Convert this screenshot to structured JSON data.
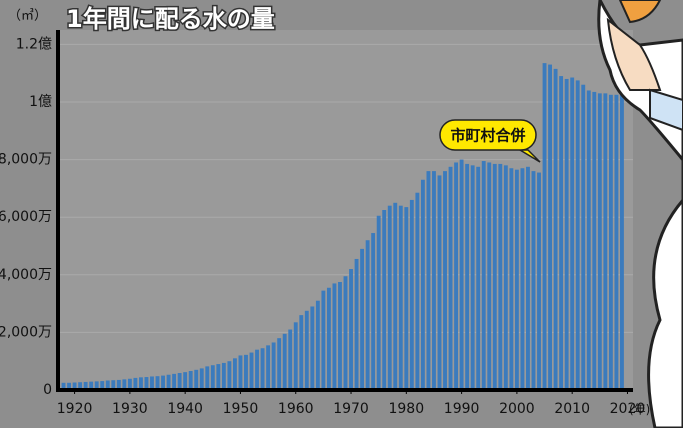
{
  "chart_data": {
    "type": "bar",
    "title": "1年間に配る水の量",
    "y_unit": "（㎥）",
    "x_unit": "(年)",
    "annotation": "市町村合併",
    "color": "#3b7bbd",
    "grid": true,
    "x": [
      1918,
      1919,
      1920,
      1921,
      1922,
      1923,
      1924,
      1925,
      1926,
      1927,
      1928,
      1929,
      1930,
      1931,
      1932,
      1933,
      1934,
      1935,
      1936,
      1937,
      1938,
      1939,
      1940,
      1941,
      1942,
      1943,
      1944,
      1945,
      1946,
      1947,
      1948,
      1949,
      1950,
      1951,
      1952,
      1953,
      1954,
      1955,
      1956,
      1957,
      1958,
      1959,
      1960,
      1961,
      1962,
      1963,
      1964,
      1965,
      1966,
      1967,
      1968,
      1969,
      1970,
      1971,
      1972,
      1973,
      1974,
      1975,
      1976,
      1977,
      1978,
      1979,
      1980,
      1981,
      1982,
      1983,
      1984,
      1985,
      1986,
      1987,
      1988,
      1989,
      1990,
      1991,
      1992,
      1993,
      1994,
      1995,
      1996,
      1997,
      1998,
      1999,
      2000,
      2001,
      2002,
      2003,
      2004,
      2005,
      2006,
      2007,
      2008,
      2009,
      2010,
      2011,
      2012,
      2013,
      2014,
      2015,
      2016,
      2017,
      2018,
      2019
    ],
    "values": [
      2500000,
      2500000,
      2600000,
      2700000,
      2800000,
      2900000,
      3000000,
      3100000,
      3300000,
      3400000,
      3500000,
      3700000,
      3900000,
      4200000,
      4400000,
      4500000,
      4700000,
      4800000,
      5000000,
      5300000,
      5600000,
      5900000,
      6200000,
      6600000,
      7000000,
      7500000,
      8200000,
      8600000,
      9000000,
      9400000,
      10000000,
      11000000,
      12000000,
      12200000,
      13000000,
      14000000,
      14500000,
      15500000,
      16500000,
      18000000,
      19500000,
      21000000,
      23500000,
      26000000,
      27500000,
      29000000,
      31000000,
      34500000,
      35500000,
      37000000,
      37500000,
      39500000,
      42000000,
      45500000,
      49000000,
      52000000,
      54500000,
      60500000,
      62500000,
      64000000,
      65000000,
      64000000,
      63500000,
      66000000,
      68500000,
      73000000,
      76000000,
      76000000,
      74500000,
      76000000,
      77500000,
      79000000,
      80000000,
      78500000,
      78000000,
      77500000,
      79500000,
      79000000,
      78500000,
      78500000,
      78000000,
      77000000,
      76500000,
      77000000,
      77500000,
      76000000,
      75500000,
      113500000,
      113000000,
      111500000,
      109000000,
      108000000,
      108500000,
      107500000,
      106000000,
      104000000,
      103500000,
      103000000,
      103000000,
      102500000,
      102500000,
      102500000
    ],
    "xlim": [
      1917,
      2021
    ],
    "xticks": [
      1920,
      1930,
      1940,
      1950,
      1960,
      1970,
      1980,
      1990,
      2000,
      2010,
      2020
    ],
    "ylim": [
      0,
      125000000
    ],
    "yticks": [
      {
        "value": 0,
        "label": "0"
      },
      {
        "value": 20000000,
        "label": "2,000万"
      },
      {
        "value": 40000000,
        "label": "4,000万"
      },
      {
        "value": 60000000,
        "label": "6,000万"
      },
      {
        "value": 80000000,
        "label": "8,000万"
      },
      {
        "value": 100000000,
        "label": "1億"
      },
      {
        "value": 120000000,
        "label": "1.2億"
      }
    ]
  }
}
